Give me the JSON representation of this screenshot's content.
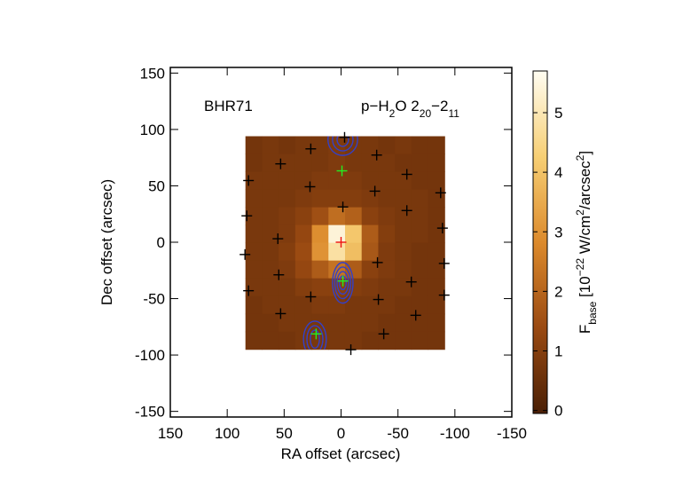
{
  "chart_data": {
    "type": "image",
    "xlabel": "RA offset (arcsec)",
    "ylabel": "Dec offset (arcsec)",
    "xlim": [
      150,
      -150
    ],
    "ylim": [
      -155,
      155
    ],
    "xticks": [
      150,
      100,
      50,
      0,
      -50,
      -100,
      -150
    ],
    "yticks": [
      -150,
      -100,
      -50,
      0,
      50,
      100,
      150
    ],
    "source_label": "BHR71",
    "line_label": [
      {
        "text": "p−H"
      },
      {
        "text": "2",
        "shift": "sub"
      },
      {
        "text": "O 2"
      },
      {
        "text": "20",
        "shift": "sub"
      },
      {
        "text": "−2"
      },
      {
        "text": "11",
        "shift": "sub"
      }
    ],
    "image": {
      "extent": [
        84,
        -91,
        94,
        -95
      ],
      "values": [
        [
          0.7,
          0.8,
          0.7,
          0.8,
          0.8,
          0.9,
          0.8,
          0.8,
          0.7,
          0.8,
          0.7,
          0.7
        ],
        [
          0.7,
          0.8,
          0.8,
          0.8,
          0.8,
          0.9,
          0.8,
          0.8,
          0.8,
          0.7,
          0.7,
          0.7
        ],
        [
          0.8,
          0.8,
          0.8,
          0.8,
          0.9,
          0.9,
          0.9,
          0.8,
          0.8,
          0.8,
          0.7,
          0.7
        ],
        [
          0.8,
          0.8,
          0.8,
          0.9,
          1.0,
          1.0,
          1.0,
          0.9,
          0.8,
          0.8,
          0.8,
          0.7
        ],
        [
          0.8,
          0.8,
          0.9,
          1.1,
          1.5,
          2.2,
          1.9,
          1.1,
          0.9,
          0.8,
          0.8,
          0.7
        ],
        [
          0.8,
          0.8,
          0.9,
          1.3,
          2.9,
          5.4,
          4.1,
          1.8,
          1.0,
          0.8,
          0.8,
          0.7
        ],
        [
          0.8,
          0.8,
          1.0,
          1.4,
          3.0,
          4.8,
          3.9,
          1.7,
          0.9,
          0.8,
          0.7,
          0.7
        ],
        [
          0.8,
          0.8,
          0.9,
          1.3,
          1.8,
          2.3,
          1.8,
          1.1,
          0.9,
          0.8,
          0.7,
          0.7
        ],
        [
          0.8,
          0.8,
          0.8,
          1.0,
          1.1,
          1.1,
          1.0,
          0.9,
          0.8,
          0.8,
          0.7,
          0.7
        ],
        [
          0.7,
          0.8,
          0.8,
          0.8,
          0.9,
          0.9,
          0.8,
          0.8,
          0.8,
          0.7,
          0.7,
          0.7
        ],
        [
          0.7,
          0.7,
          0.8,
          0.8,
          0.8,
          0.8,
          0.8,
          0.8,
          0.7,
          0.7,
          0.7,
          0.7
        ],
        [
          0.7,
          0.7,
          0.7,
          0.8,
          0.8,
          0.8,
          0.8,
          0.7,
          0.7,
          0.7,
          0.7,
          0.7
        ]
      ]
    },
    "colormap": [
      "#4a1f05",
      "#9a4a12",
      "#dc8a2c",
      "#f7cf74",
      "#fffdf2"
    ],
    "clim": [
      -0.05,
      5.7
    ],
    "cticks": [
      0,
      1,
      2,
      3,
      4,
      5
    ],
    "colorbar_label": [
      {
        "text": "F"
      },
      {
        "text": "base",
        "shift": "sub"
      },
      {
        "text": " [10"
      },
      {
        "text": "−22",
        "shift": "super"
      },
      {
        "text": " W/cm"
      },
      {
        "text": "2",
        "shift": "super"
      },
      {
        "text": "/arcsec"
      },
      {
        "text": "2",
        "shift": "super"
      },
      {
        "text": "]"
      }
    ],
    "contour_color": "#3340c8",
    "contours": [
      {
        "center": [
          -1.5,
          91
        ],
        "rx": [
          13,
          9,
          5
        ],
        "ry": [
          14,
          10,
          6
        ]
      },
      {
        "center": [
          -1.5,
          -36
        ],
        "rx": [
          9,
          7,
          5,
          3
        ],
        "ry": [
          18,
          14,
          10,
          6
        ]
      },
      {
        "center": [
          23,
          -86
        ],
        "rx": [
          10,
          7,
          4
        ],
        "ry": [
          16,
          12,
          8
        ]
      }
    ],
    "markers": [
      {
        "color": "#000000",
        "points": [
          [
            -3.1,
            93
          ],
          [
            26.6,
            82.8
          ],
          [
            -31.3,
            77.3
          ],
          [
            53.1,
            69.5
          ],
          [
            -57.8,
            60.2
          ],
          [
            81.3,
            54.7
          ],
          [
            -87.5,
            43.8
          ],
          [
            27.3,
            49.2
          ],
          [
            -29.7,
            45.3
          ],
          [
            82.8,
            23.4
          ],
          [
            -1.6,
            31.3
          ],
          [
            -57.8,
            28.1
          ],
          [
            -89.1,
            12.5
          ],
          [
            55.5,
            3.1
          ],
          [
            84.4,
            -10.9
          ],
          [
            -32,
            -18
          ],
          [
            -90.6,
            -18.8
          ],
          [
            54.7,
            -28.9
          ],
          [
            -61.7,
            -35.2
          ],
          [
            81.3,
            -43
          ],
          [
            26.6,
            -48.4
          ],
          [
            -32.8,
            -50.8
          ],
          [
            -90.6,
            -46.9
          ],
          [
            53.1,
            -63.3
          ],
          [
            -65.6,
            -64.8
          ],
          [
            -37.5,
            -81.3
          ],
          [
            -8.6,
            -95.3
          ]
        ]
      },
      {
        "color": "#22ee22",
        "points": [
          [
            -0.8,
            63.3
          ],
          [
            -1.6,
            -34.4
          ],
          [
            21.9,
            -81.3
          ]
        ]
      },
      {
        "color": "#ee1111",
        "points": [
          [
            0,
            0
          ]
        ]
      }
    ]
  }
}
